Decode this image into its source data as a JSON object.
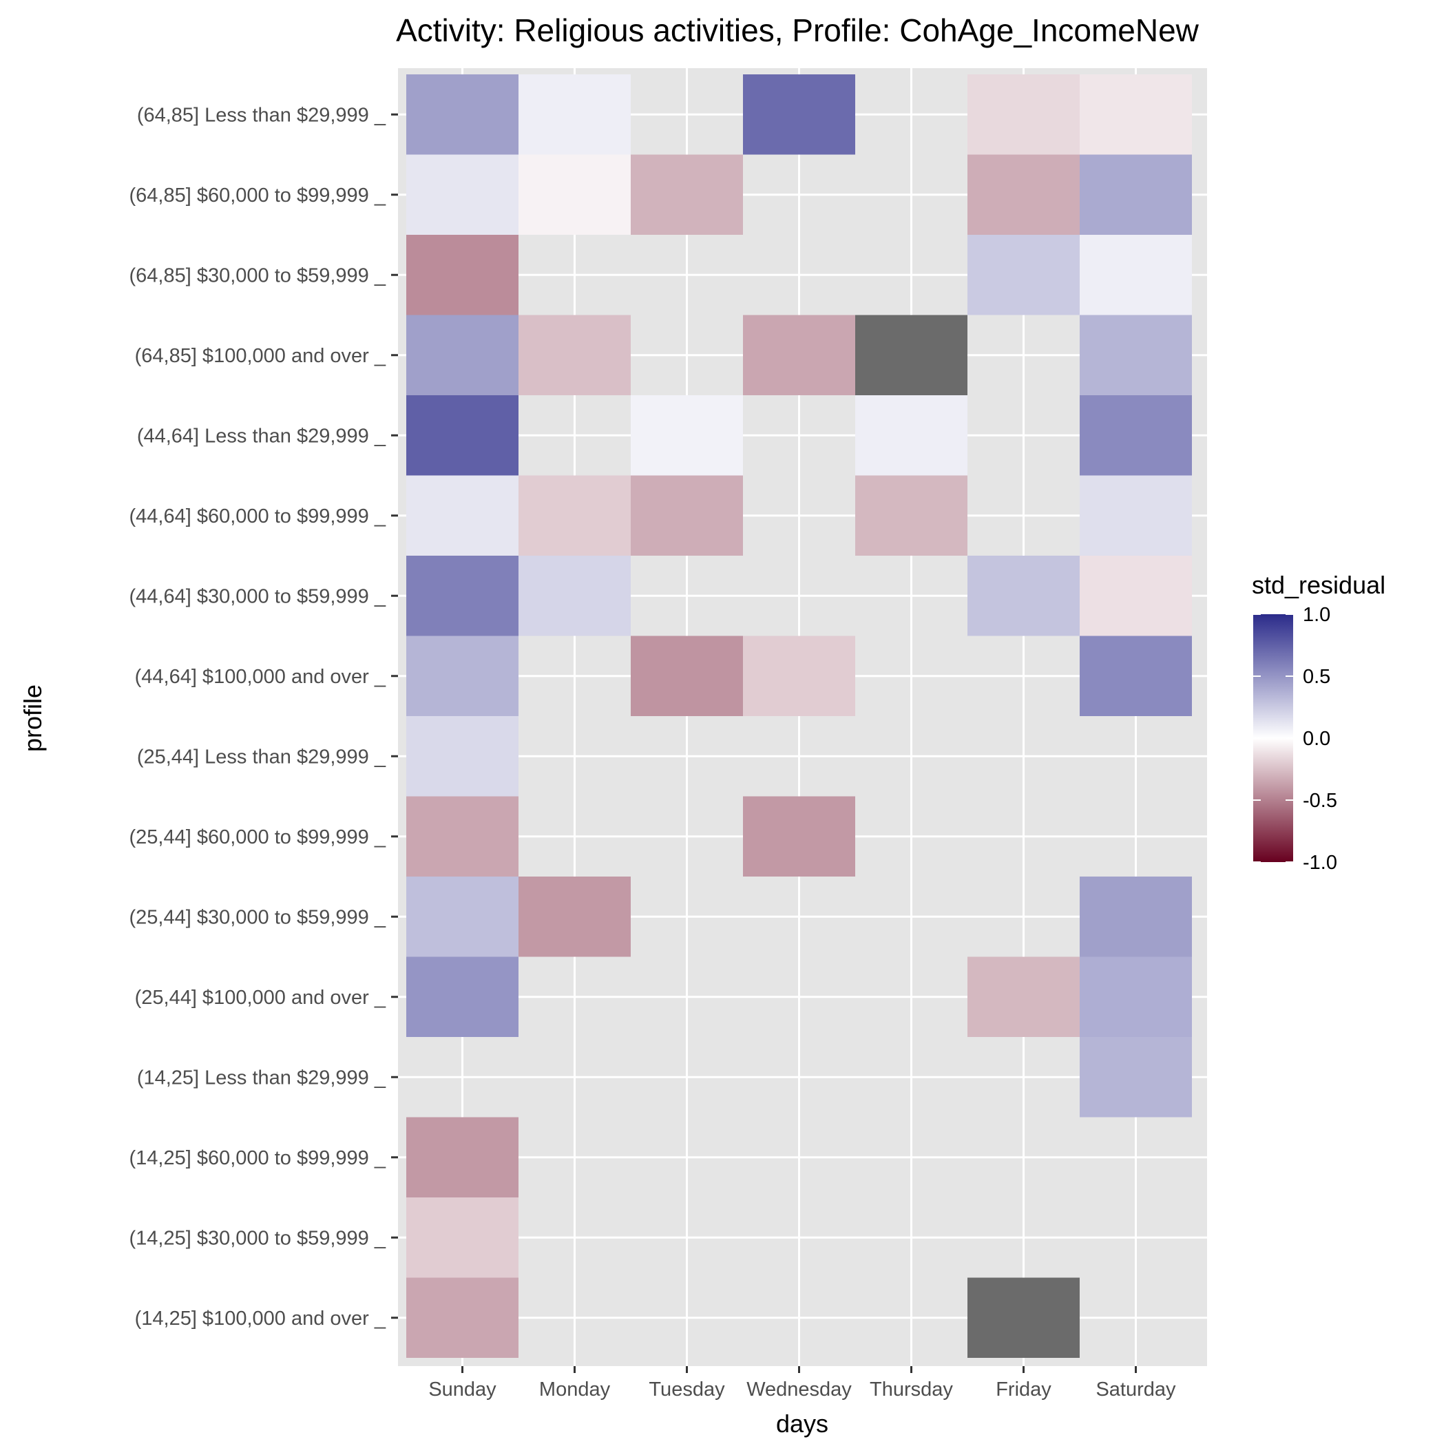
{
  "chart_data": {
    "type": "heatmap",
    "title": "Activity: Religious activities, Profile: CohAge_IncomeNew",
    "xlabel": "days",
    "ylabel": "profile",
    "x_categories": [
      "Sunday",
      "Monday",
      "Tuesday",
      "Wednesday",
      "Thursday",
      "Friday",
      "Saturday"
    ],
    "y_categories": [
      "(64,85] Less than $29,999 _",
      "(64,85] $60,000 to $99,999 _",
      "(64,85] $30,000 to $59,999 _",
      "(64,85] $100,000 and over _",
      "(44,64] Less than $29,999 _",
      "(44,64] $60,000 to $99,999 _",
      "(44,64] $30,000 to $59,999 _",
      "(44,64] $100,000 and over _",
      "(25,44] Less than $29,999 _",
      "(25,44] $60,000 to $99,999 _",
      "(25,44] $30,000 to $59,999 _",
      "(25,44] $100,000 and over _",
      "(14,25] Less than $29,999 _",
      "(14,25] $60,000 to $99,999 _",
      "(14,25] $30,000 to $59,999 _",
      "(14,25] $100,000 and over _"
    ],
    "values": [
      [
        0.45,
        0.08,
        null,
        0.7,
        null,
        -0.15,
        -0.1
      ],
      [
        0.12,
        -0.05,
        -0.3,
        null,
        null,
        -0.32,
        0.4
      ],
      [
        -0.45,
        null,
        null,
        null,
        null,
        0.25,
        0.08
      ],
      [
        0.45,
        -0.25,
        null,
        -0.35,
        "NA",
        null,
        0.35
      ],
      [
        0.75,
        null,
        0.06,
        null,
        0.08,
        null,
        0.55
      ],
      [
        0.12,
        -0.2,
        -0.32,
        null,
        -0.28,
        null,
        0.15
      ],
      [
        0.6,
        0.2,
        null,
        null,
        null,
        0.28,
        -0.12
      ],
      [
        0.35,
        null,
        -0.42,
        -0.2,
        null,
        null,
        0.55
      ],
      [
        0.18,
        null,
        null,
        null,
        null,
        null,
        null
      ],
      [
        -0.35,
        null,
        null,
        -0.4,
        null,
        null,
        null
      ],
      [
        0.3,
        -0.4,
        null,
        null,
        null,
        null,
        0.45
      ],
      [
        0.5,
        null,
        null,
        null,
        null,
        -0.28,
        0.38
      ],
      [
        null,
        null,
        null,
        null,
        null,
        null,
        0.35
      ],
      [
        -0.4,
        null,
        null,
        null,
        null,
        null,
        null
      ],
      [
        -0.2,
        null,
        null,
        null,
        null,
        null,
        null
      ],
      [
        -0.35,
        null,
        null,
        null,
        null,
        "NA",
        null
      ]
    ],
    "value_range": [
      -1.0,
      1.0
    ],
    "color_scale": {
      "low": "#67001f",
      "mid": "#ffffff",
      "high": "#2b2b8a",
      "na": "#6b6b6b"
    },
    "panel_background": "#e5e5e5",
    "grid": true,
    "legend": {
      "title": "std_residual",
      "position": "right",
      "ticks": [
        1.0,
        0.5,
        0.0,
        -0.5,
        -1.0
      ],
      "tick_labels": [
        "1.0",
        "0.5",
        "0.0",
        "-0.5",
        "-1.0"
      ]
    }
  }
}
